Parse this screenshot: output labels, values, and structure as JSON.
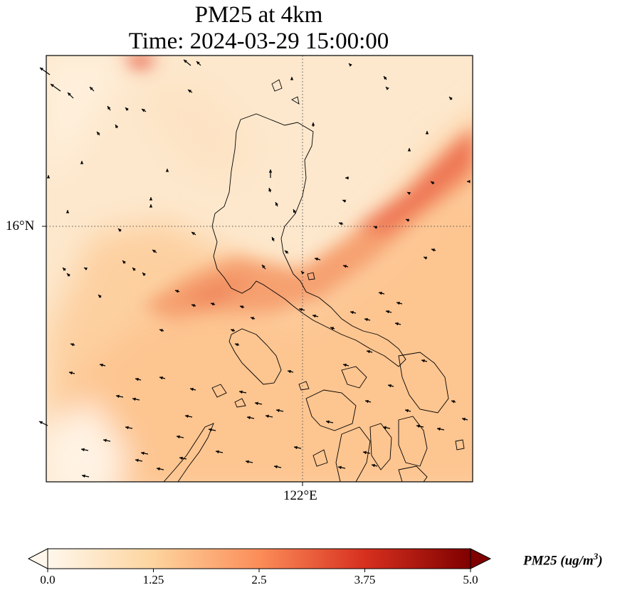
{
  "title": {
    "line1": "PM25 at 4km",
    "line2": "Time: 2024-03-29 15:00:00"
  },
  "map": {
    "variable": "PM25",
    "lat_gridline_label": "16°N",
    "lon_gridline_label": "122°E",
    "colormap": "OrRd",
    "plume_color": "#ee6e4f",
    "background_color": "#fdf0dc",
    "coastline_color": "#000000"
  },
  "colorbar": {
    "label_text": "PM25 (ug/m",
    "label_exponent": "3",
    "label_close": ")",
    "min": 0.0,
    "max": 5.0,
    "extend": "both",
    "ticks": [
      "0.0",
      "1.25",
      "2.5",
      "3.75",
      "5.0"
    ],
    "stops": [
      "#fff7ec",
      "#fdd49e",
      "#fc8d59",
      "#d7301f",
      "#7f0000"
    ]
  }
}
